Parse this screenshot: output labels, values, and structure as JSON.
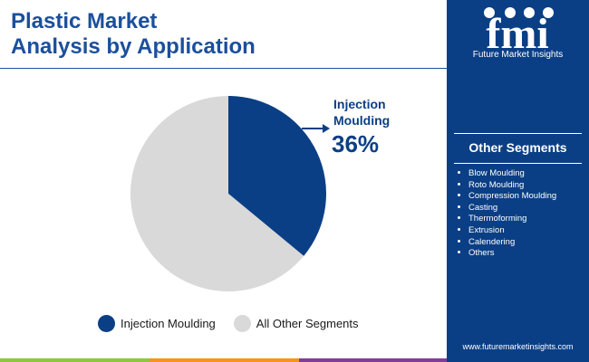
{
  "header": {
    "title_line1": "Plastic Market",
    "title_line2": "Analysis by Application"
  },
  "brand": {
    "logo_text": "fmi",
    "name": "Future Market Insights",
    "url": "www.futuremarketinsights.com"
  },
  "side_panel": {
    "title": "Other Segments",
    "items": [
      "Blow Moulding",
      "Roto Moulding",
      "Compression Moulding",
      "Casting",
      "Thermoforming",
      "Extrusion",
      "Calendering",
      "Others"
    ]
  },
  "colors": {
    "primary": "#0b3f85",
    "title": "#1b4f9c",
    "other": "#d9d9d9",
    "bar_green": "#8ec63f",
    "bar_orange": "#f7941d",
    "bar_purple": "#7f3f98"
  },
  "chart_data": {
    "type": "pie",
    "title": "Plastic Market Analysis by Application",
    "slices": [
      {
        "label": "Injection Moulding",
        "value": 36,
        "color": "#0b3f85"
      },
      {
        "label": "All Other Segments",
        "value": 64,
        "color": "#d9d9d9"
      }
    ],
    "annotation": {
      "label_line1": "Injection",
      "label_line2": "Moulding",
      "value_text": "36%"
    },
    "legend": [
      "Injection Moulding",
      "All Other Segments"
    ],
    "legend_position": "bottom"
  }
}
